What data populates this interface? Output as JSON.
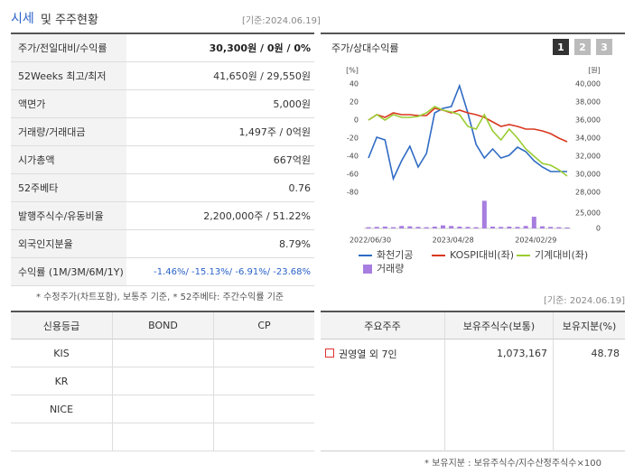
{
  "header": {
    "title_main": "시세",
    "title_rest": "및 주주현황",
    "date": "[기준:2024.06.19]"
  },
  "summary": {
    "rows": [
      [
        "주가/전일대비/수익률",
        "30,300원 / 0원 / 0%"
      ],
      [
        "52Weeks 최고/최저",
        "41,650원 / 29,550원"
      ],
      [
        "액면가",
        "5,000원"
      ],
      [
        "거래량/거래대금",
        "1,497주 / 0억원"
      ],
      [
        "시가총액",
        "667억원"
      ],
      [
        "52주베타",
        "0.76"
      ],
      [
        "발행주식수/유동비율",
        "2,200,000주 / 51.22%"
      ],
      [
        "외국인지분율",
        "8.79%"
      ],
      [
        "수익률 (1M/3M/6M/1Y)",
        "-1.46%/ -15.13%/ -6.91%/ -23.68%"
      ]
    ]
  },
  "chart_data": {
    "type": "line",
    "title": "주가/상대수익률",
    "buttons": [
      "1",
      "2",
      "3"
    ],
    "y_unit": "[%]",
    "y2_unit": "[원]",
    "categories": [
      "2022/06/30",
      null,
      null,
      null,
      null,
      null,
      null,
      null,
      null,
      null,
      "2023/04/28",
      null,
      null,
      null,
      null,
      null,
      null,
      null,
      null,
      null,
      "2024/02/29",
      null,
      null,
      null,
      null
    ],
    "ylim": [
      -80,
      40
    ],
    "yticks": [
      40,
      20,
      0,
      -20,
      -40,
      -60,
      -80
    ],
    "y2lim": [
      28000,
      40000
    ],
    "y2ticks": [
      {
        "value": 40000,
        "label": "40,000"
      },
      {
        "value": 38000,
        "label": "38,000"
      },
      {
        "value": 36000,
        "label": "36,000"
      },
      {
        "value": 34000,
        "label": "34,000"
      },
      {
        "value": 32000,
        "label": "32,000"
      },
      {
        "value": 30000,
        "label": "30,000"
      },
      {
        "value": 28000,
        "label": "28,000"
      }
    ],
    "y3lim": [
      0,
      25000
    ],
    "y3ticks": [
      {
        "value": 25000,
        "label": "25,000"
      },
      0
    ],
    "series": [
      {
        "name": "화천기공",
        "color": "#2f6bc4",
        "axis": "y2",
        "values": [
          31800,
          34100,
          33800,
          29500,
          31500,
          33100,
          30800,
          32300,
          36800,
          37300,
          37500,
          39800,
          36800,
          33300,
          31800,
          32800,
          31800,
          32100,
          33000,
          32500,
          31500,
          30800,
          30300,
          30300,
          30300
        ]
      },
      {
        "name": "KOSPI대비(좌)",
        "color": "#d9381e",
        "values": [
          0,
          6,
          3,
          8,
          6,
          6,
          5,
          5,
          13,
          11,
          8,
          11,
          8,
          6,
          3,
          -2,
          -7,
          -5,
          -7,
          -10,
          -10,
          -12,
          -15,
          -20,
          -24
        ]
      },
      {
        "name": "기계대비(좌)",
        "color": "#9acd32",
        "values": [
          0,
          6,
          0,
          6,
          3,
          3,
          4,
          8,
          15,
          11,
          9,
          6,
          -7,
          -10,
          6,
          -12,
          -22,
          -10,
          -20,
          -32,
          -40,
          -48,
          -50,
          -55,
          -62
        ]
      },
      {
        "name": "거래량",
        "color": "#a77de0",
        "axis": "y3",
        "type": "bar",
        "values": [
          2000,
          2500,
          3000,
          2000,
          4000,
          3500,
          2500,
          2000,
          3000,
          5000,
          4000,
          3000,
          2500,
          2000,
          45000,
          3000,
          2500,
          3000,
          2500,
          4000,
          19000,
          3500,
          2500,
          2000,
          1500
        ]
      }
    ]
  },
  "note": "* 수정주가(차트포함), 보통주 기준, * 52주베타: 주간수익률 기준",
  "date2": "[기준: 2024.06.19]",
  "credit": {
    "headers": [
      "신용등급",
      "BOND",
      "CP"
    ],
    "rows": [
      "KIS",
      "KR",
      "NICE"
    ]
  },
  "holders": {
    "headers": [
      "주요주주",
      "보유주식수(보통)",
      "보유지분(%)"
    ],
    "rows": [
      [
        "권영열 외 7인",
        "1,073,167",
        "48.78"
      ]
    ]
  },
  "footnote": "* 보유지분 : 보유주식수/지수산정주식수×100"
}
